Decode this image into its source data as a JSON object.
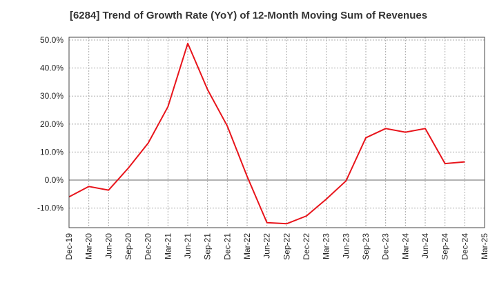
{
  "chart_data": {
    "type": "line",
    "title": "[6284]  Trend of Growth Rate (YoY) of 12-Month Moving Sum of Revenues",
    "xlabel": "",
    "ylabel": "",
    "x_ticks": [
      "Dec-19",
      "Mar-20",
      "Jun-20",
      "Sep-20",
      "Dec-20",
      "Mar-21",
      "Jun-21",
      "Sep-21",
      "Dec-21",
      "Mar-22",
      "Jun-22",
      "Sep-22",
      "Dec-22",
      "Mar-23",
      "Jun-23",
      "Sep-23",
      "Dec-23",
      "Mar-24",
      "Jun-24",
      "Sep-24",
      "Dec-24",
      "Mar-25"
    ],
    "y_ticks": [
      "-10.0%",
      "0.0%",
      "10.0%",
      "20.0%",
      "30.0%",
      "40.0%",
      "50.0%"
    ],
    "y_tick_values": [
      -10,
      0,
      10,
      20,
      30,
      40,
      50
    ],
    "ylim": [
      -17,
      51
    ],
    "grid": true,
    "legend": "none",
    "line_color": "#e8141b",
    "series": [
      {
        "x": [
          "Dec-19",
          "Mar-20",
          "Jun-20",
          "Sep-20",
          "Dec-20",
          "Mar-21",
          "Jun-21",
          "Sep-21",
          "Dec-21",
          "Mar-22",
          "Jun-22",
          "Sep-22",
          "Dec-22",
          "Mar-23",
          "Jun-23",
          "Sep-23",
          "Dec-23",
          "Mar-24",
          "Jun-24",
          "Sep-24",
          "Dec-24"
        ],
        "values": [
          -6.0,
          -2.3,
          -3.6,
          4.3,
          13.2,
          26.2,
          48.8,
          32.3,
          19.3,
          1.3,
          -15.2,
          -15.6,
          -12.8,
          -6.8,
          -0.3,
          15.1,
          18.4,
          17.1,
          18.4,
          5.9,
          6.5
        ]
      }
    ]
  }
}
